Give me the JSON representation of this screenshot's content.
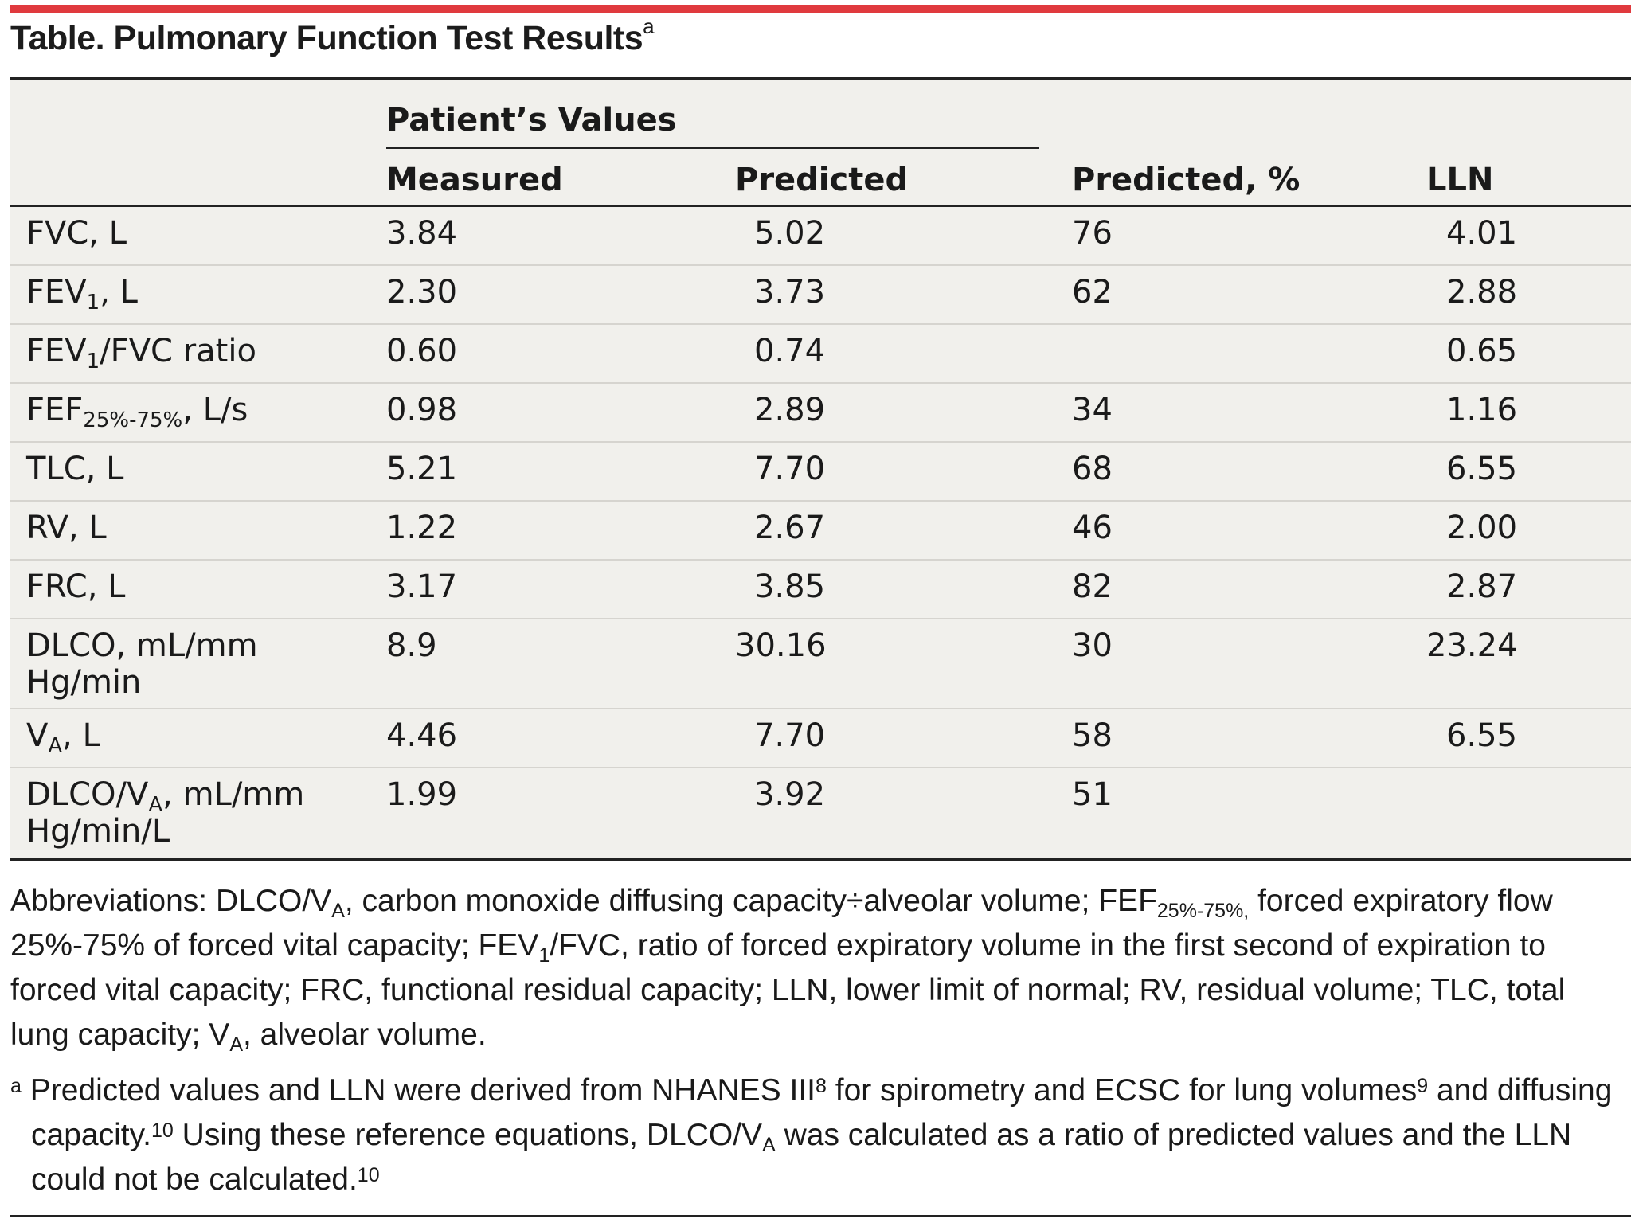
{
  "title": {
    "text": "Table. Pulmonary Function Test Results",
    "marker": "a"
  },
  "header": {
    "group": "Patient’s Values",
    "columns": [
      "Measured",
      "Predicted",
      "Predicted, %",
      "LLN"
    ]
  },
  "rows": [
    {
      "label_main": "FVC, L",
      "measured": "3.84",
      "predicted": "5.02",
      "pct": "76",
      "lln": "4.01"
    },
    {
      "label_pre": "FEV",
      "label_sub": "1",
      "label_post": ", L",
      "measured": "2.30",
      "predicted": "3.73",
      "pct": "62",
      "lln": "2.88"
    },
    {
      "label_pre": "FEV",
      "label_sub": "1",
      "label_post": "/FVC ratio",
      "measured": "0.60",
      "predicted": "0.74",
      "pct": "",
      "lln": "0.65"
    },
    {
      "label_pre": "FEF",
      "label_sub": "25%-75%",
      "label_post": ", L/s",
      "measured": "0.98",
      "predicted": "2.89",
      "pct": "34",
      "lln": "1.16"
    },
    {
      "label_main": "TLC, L",
      "measured": "5.21",
      "predicted": "7.70",
      "pct": "68",
      "lln": "6.55"
    },
    {
      "label_main": "RV, L",
      "measured": "1.22",
      "predicted": "2.67",
      "pct": "46",
      "lln": "2.00"
    },
    {
      "label_main": "FRC, L",
      "measured": "3.17",
      "predicted": "3.85",
      "pct": "82",
      "lln": "2.87"
    },
    {
      "label_main": "DLCO, mL/mm Hg/min",
      "measured": "8.9",
      "predicted": "30.16",
      "pct": "30",
      "lln": "23.24"
    },
    {
      "label_pre": "V",
      "label_sub": "A",
      "label_post": ", L",
      "measured": "4.46",
      "predicted": "7.70",
      "pct": "58",
      "lln": "6.55"
    },
    {
      "label_pre": "DLCO/V",
      "label_sub": "A",
      "label_post": ", mL/mm Hg/min/L",
      "measured": "1.99",
      "predicted": "3.92",
      "pct": "51",
      "lln": ""
    }
  ],
  "footnotes": {
    "abbr_parts": [
      "Abbreviations: DLCO/V",
      "A",
      ", carbon monoxide diffusing capacity÷alveolar volume; FEF",
      "25%-75%,",
      " forced expiratory flow 25%-75% of forced vital capacity; FEV",
      "1",
      "/FVC, ratio of forced expiratory volume in the first second of expiration to forced vital capacity; FRC, functional residual capacity; LLN, lower limit of normal; RV, residual volume; TLC, total lung capacity; V",
      "A",
      ", alveolar volume."
    ],
    "note_marker": "a",
    "note_parts": [
      " Predicted values and LLN were derived from NHANES III",
      "8",
      " for spirometry and ECSC for lung volumes",
      "9",
      " and diffusing capacity.",
      "10",
      " Using these reference equations, DLCO/V",
      "A",
      " was calculated as a ratio of predicted values and the LLN could not be calculated.",
      "10"
    ]
  }
}
